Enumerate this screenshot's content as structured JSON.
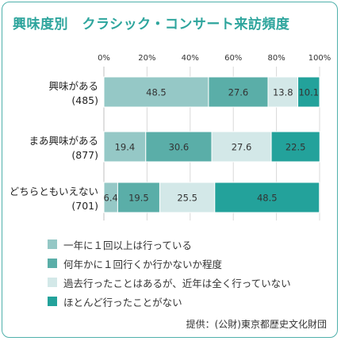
{
  "title": "興味度別　クラシック・コンサート来訪頻度",
  "source": "提供：(公財)東京都歴史文化財団",
  "chart_data": {
    "type": "bar",
    "orientation": "horizontal",
    "stacked": true,
    "xlim": [
      0,
      100
    ],
    "x_ticks": [
      "0%",
      "20%",
      "40%",
      "60%",
      "80%",
      "100%"
    ],
    "grid": true,
    "legend_position": "bottom",
    "categories": [
      {
        "name": "興味がある",
        "n": "(485)"
      },
      {
        "name": "まあ興味がある",
        "n": "(877)"
      },
      {
        "name": "どちらともいえない",
        "n": "(701)"
      }
    ],
    "series": [
      {
        "name": "一年に１回以上は行っている",
        "color": "#95c8c6",
        "values": [
          48.5,
          19.4,
          6.4
        ]
      },
      {
        "name": "何年かに１回行くか行かないか程度",
        "color": "#5aaea8",
        "values": [
          27.6,
          30.6,
          19.5
        ]
      },
      {
        "name": "過去行ったことはあるが、近年は全く行っていない",
        "color": "#d3e8e8",
        "values": [
          13.8,
          27.6,
          25.5
        ]
      },
      {
        "name": "ほとんど行ったことがない",
        "color": "#23a29b",
        "values": [
          10.1,
          22.5,
          48.5
        ]
      }
    ]
  }
}
